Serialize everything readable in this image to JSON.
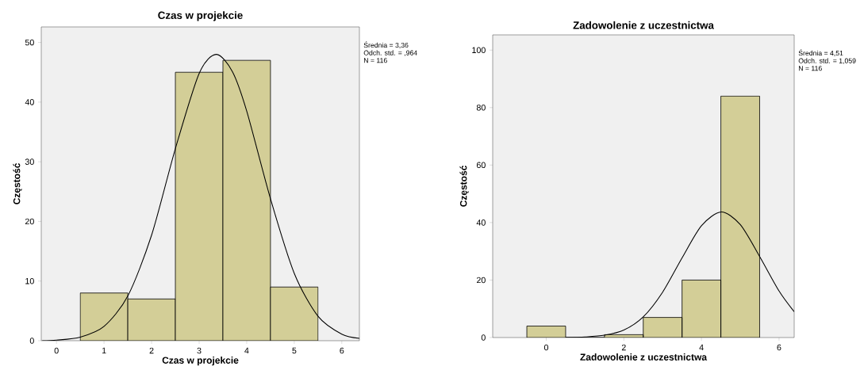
{
  "chart_data": [
    {
      "type": "histogram",
      "title": "Czas w projekcie",
      "xlabel": "Czas w projekcie",
      "ylabel": "Częstość",
      "annotations": [
        "Średnia = 3,36",
        "Odch. std. = ,964",
        "N = 116"
      ],
      "xlim": [
        -0.32,
        6.37
      ],
      "ylim": [
        0,
        52.6
      ],
      "xticks": [
        0,
        1,
        2,
        3,
        4,
        5,
        6
      ],
      "yticks": [
        0,
        10,
        20,
        30,
        40,
        50
      ],
      "series": [
        {
          "type": "histogram",
          "color": "#d3ce97",
          "bins": [
            0.5,
            1.5,
            2.5,
            3.5,
            4.5,
            5.5
          ],
          "values": [
            8,
            7,
            45,
            47,
            9
          ]
        },
        {
          "type": "line",
          "color": "#000000",
          "x": [
            -0.3,
            0,
            0.5,
            1,
            1.5,
            2,
            2.5,
            3,
            3.36,
            3.7,
            4,
            4.5,
            5,
            5.5,
            6,
            6.37
          ],
          "values": [
            0,
            0.1,
            0.6,
            2.4,
            7.5,
            17.7,
            32.2,
            44.8,
            48,
            45.1,
            38.5,
            23.8,
            11.3,
            4.1,
            1.1,
            0.4
          ]
        }
      ]
    },
    {
      "type": "histogram",
      "title": "Zadowolenie z uczestnictwa",
      "xlabel": "Zadowolenie z uczestnictwa",
      "ylabel": "Częstość",
      "annotations": [
        "Średnia = 4,51",
        "Odch. std. = 1,059",
        "N = 116"
      ],
      "xlim": [
        -1.38,
        6.39
      ],
      "ylim": [
        0,
        105.3
      ],
      "xticks": [
        0,
        2,
        4,
        6
      ],
      "yticks": [
        0,
        20,
        40,
        60,
        80,
        100
      ],
      "series": [
        {
          "type": "histogram",
          "color": "#d3ce97",
          "bins": [
            -0.5,
            0.5,
            1.5,
            2.5,
            3.5,
            4.5,
            5.5
          ],
          "values": [
            4,
            0,
            1,
            7,
            20,
            84
          ]
        },
        {
          "type": "line",
          "color": "#000000",
          "x": [
            0.5,
            1,
            1.5,
            2,
            2.5,
            3,
            3.5,
            4,
            4.51,
            5,
            5.5,
            6,
            6.39
          ],
          "values": [
            0,
            0.2,
            0.8,
            2.6,
            7.2,
            15.8,
            27.7,
            38.9,
            43.7,
            39.3,
            28.2,
            16.2,
            9
          ]
        }
      ]
    }
  ]
}
